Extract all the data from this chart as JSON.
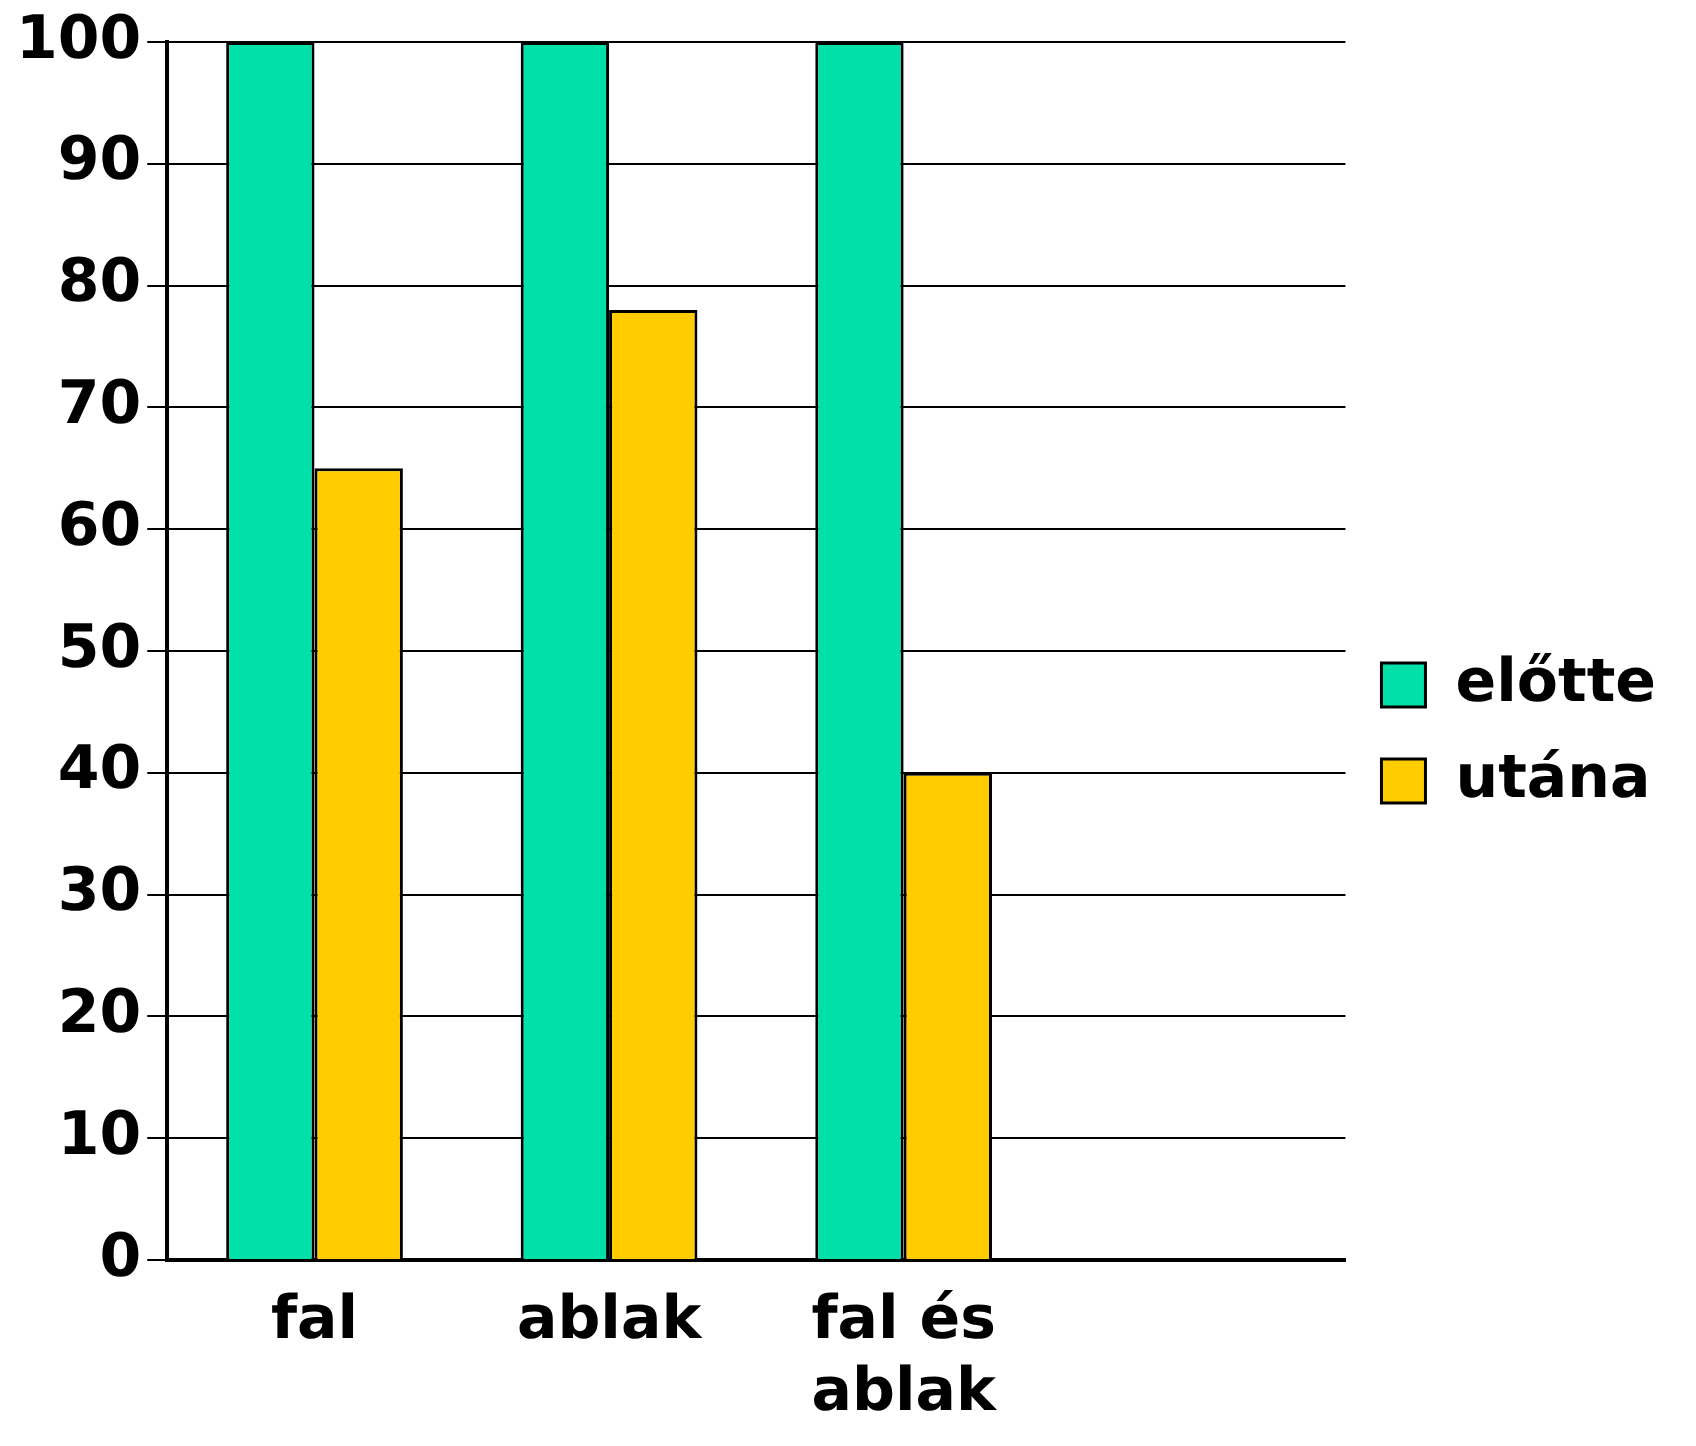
{
  "chart_data": {
    "type": "bar",
    "categories": [
      "fal",
      "ablak",
      "fal és ablak",
      null
    ],
    "series": [
      {
        "name": "előtte",
        "color": "#00e0a8",
        "values": [
          100,
          100,
          100,
          null
        ]
      },
      {
        "name": "utána",
        "color": "#ffcc00",
        "values": [
          65,
          78,
          40,
          null
        ]
      }
    ],
    "ylim": [
      0,
      100
    ],
    "yticks": [
      0,
      10,
      20,
      30,
      40,
      50,
      60,
      70,
      80,
      90,
      100
    ],
    "grid": "y",
    "legend": "right"
  }
}
